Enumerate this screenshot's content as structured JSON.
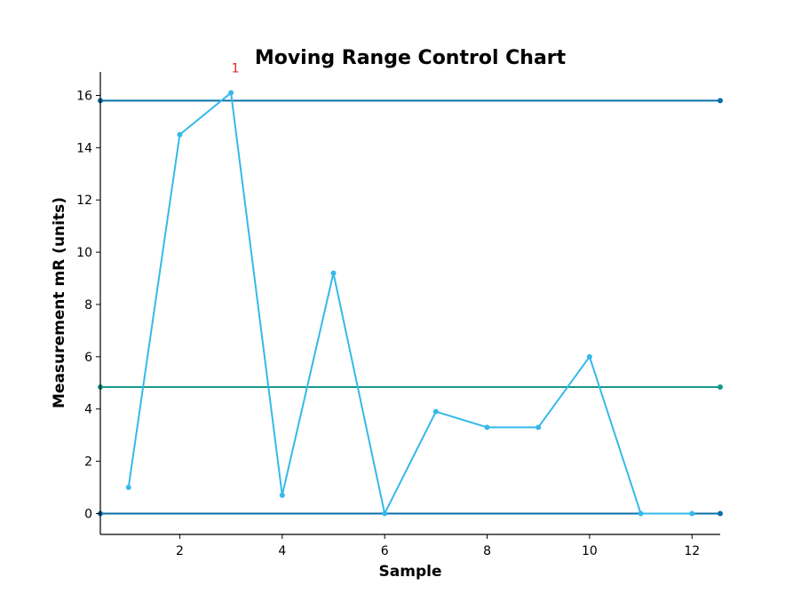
{
  "chart_data": {
    "type": "line",
    "title": "Moving Range Control Chart",
    "xlabel": "Sample",
    "ylabel": "Measurement mR (units)",
    "xlim": [
      0.45,
      12.55
    ],
    "ylim": [
      -0.8,
      16.9
    ],
    "xticks": [
      2,
      4,
      6,
      8,
      10,
      12
    ],
    "yticks": [
      0,
      2,
      4,
      6,
      8,
      10,
      12,
      14,
      16
    ],
    "grid": false,
    "series": [
      {
        "x": [
          1,
          2,
          3,
          4,
          5,
          6,
          7,
          8,
          9,
          10,
          11,
          12
        ],
        "values": [
          1.0,
          14.5,
          16.1,
          0.7,
          9.2,
          0.0,
          3.9,
          3.3,
          3.3,
          6.0,
          0.0,
          0.0
        ],
        "color": "#35b9e9"
      }
    ],
    "control_lines": {
      "ucl": {
        "value": 15.8,
        "color": "#0a6fa8"
      },
      "center": {
        "value": 4.84,
        "color": "#159a8c"
      },
      "lcl": {
        "value": 0.0,
        "color": "#0a6fa8"
      }
    },
    "annotations": [
      {
        "text": "1",
        "x": 3,
        "y": 16.1,
        "color": "#e3271d"
      }
    ]
  }
}
